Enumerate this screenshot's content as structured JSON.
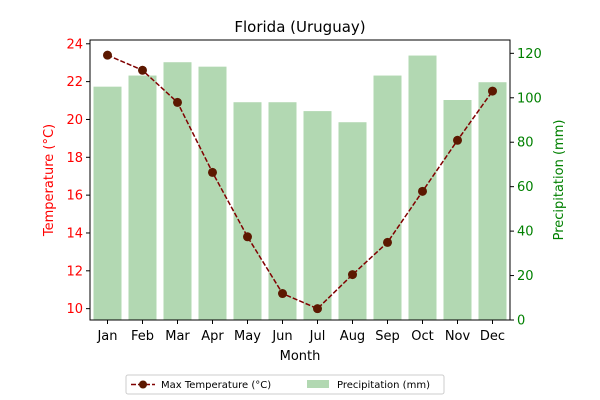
{
  "chart_data": {
    "type": "bar",
    "title": "Florida (Uruguay)",
    "xlabel": "Month",
    "categories": [
      "Jan",
      "Feb",
      "Mar",
      "Apr",
      "May",
      "Jun",
      "Jul",
      "Aug",
      "Sep",
      "Oct",
      "Nov",
      "Dec"
    ],
    "axes": {
      "left": {
        "label": "Temperature (°C)",
        "ylim": [
          9.4,
          24.2
        ],
        "ticks": [
          10,
          12,
          14,
          16,
          18,
          20,
          22,
          24
        ],
        "color": "#ff0000"
      },
      "right": {
        "label": "Precipitation (mm)",
        "ylim": [
          0,
          126
        ],
        "ticks": [
          0,
          20,
          40,
          60,
          80,
          100,
          120
        ],
        "color": "#008000"
      }
    },
    "series": [
      {
        "name": "Max Temperature (°C)",
        "type": "line",
        "axis": "left",
        "style": "dashed",
        "marker": "circle",
        "color": "#800000",
        "marker_color": "#5c1800",
        "values": [
          23.4,
          22.6,
          20.9,
          17.2,
          13.8,
          10.8,
          10.0,
          11.8,
          13.5,
          16.2,
          18.9,
          21.5
        ]
      },
      {
        "name": "Precipitation (mm)",
        "type": "bar",
        "axis": "right",
        "color": "#b2d8b2",
        "values": [
          105,
          110,
          116,
          114,
          98,
          98,
          94,
          89,
          110,
          119,
          99,
          107
        ]
      }
    ],
    "legend": {
      "placement": "bottom-center",
      "columns": 2
    },
    "grid": false
  }
}
